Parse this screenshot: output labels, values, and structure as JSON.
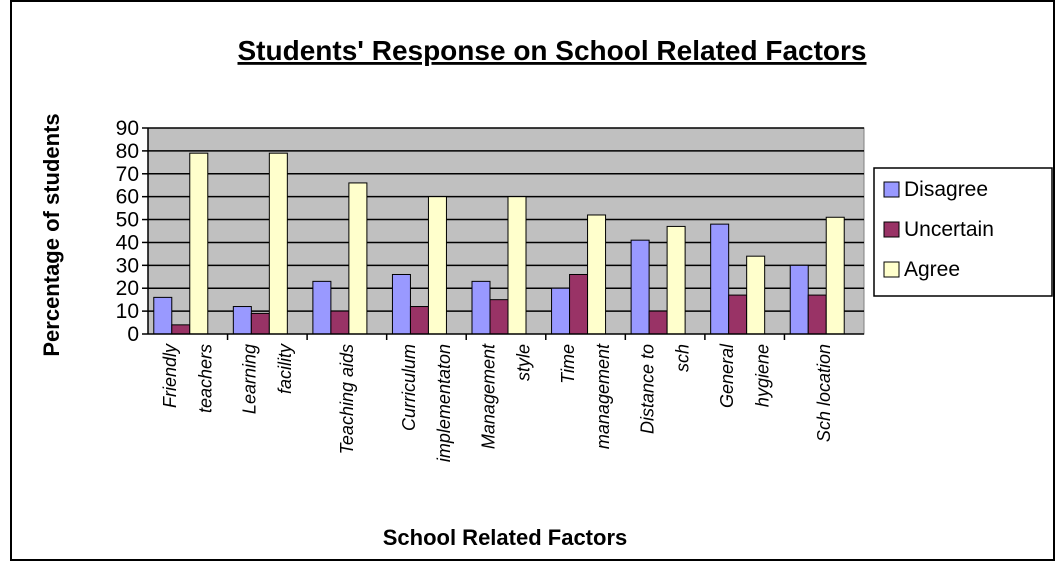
{
  "chart_data": {
    "type": "bar",
    "title": "Students' Response on School Related Factors",
    "xlabel": "School Related Factors",
    "ylabel": "Percentage of students",
    "ylim": [
      0,
      90
    ],
    "yticks": [
      0,
      10,
      20,
      30,
      40,
      50,
      60,
      70,
      80,
      90
    ],
    "grid": true,
    "legend_position": "right",
    "categories": [
      [
        "Friendly",
        "teachers"
      ],
      [
        "Learning",
        "facility"
      ],
      [
        "Teaching aids"
      ],
      [
        "Curriculum",
        "implementaton"
      ],
      [
        "Management",
        "style"
      ],
      [
        "Time",
        "management"
      ],
      [
        "Distance to",
        "sch"
      ],
      [
        "General",
        "hygiene"
      ],
      [
        "Sch location"
      ]
    ],
    "series": [
      {
        "name": "Disagree",
        "color": "#9999FF",
        "values": [
          16,
          12,
          23,
          26,
          23,
          20,
          41,
          48,
          30
        ]
      },
      {
        "name": "Uncertain",
        "color": "#993366",
        "values": [
          4,
          9,
          10,
          12,
          15,
          26,
          10,
          17,
          17
        ]
      },
      {
        "name": "Agree",
        "color": "#FFFFCC",
        "values": [
          79,
          79,
          66,
          60,
          60,
          52,
          47,
          34,
          51
        ]
      }
    ],
    "plot_background": "#C0C0C0"
  }
}
